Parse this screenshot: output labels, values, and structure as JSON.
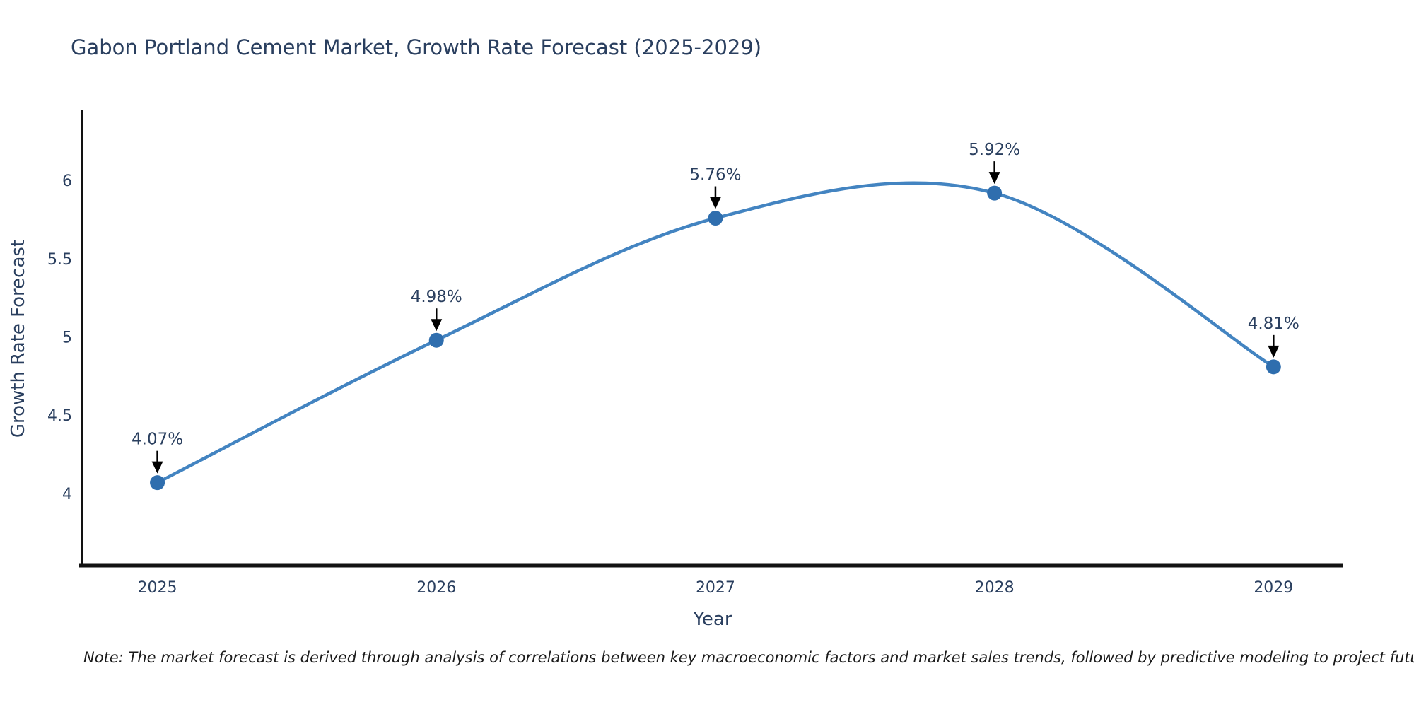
{
  "chart_data": {
    "type": "line",
    "title": "Gabon Portland Cement Market, Growth Rate Forecast (2025-2029)",
    "xlabel": "Year",
    "ylabel": "Growth Rate Forecast",
    "x": [
      2025,
      2026,
      2027,
      2028,
      2029
    ],
    "y": [
      4.07,
      4.98,
      5.76,
      5.92,
      4.81
    ],
    "series": [
      {
        "name": "Growth Rate Forecast",
        "values": [
          4.07,
          4.98,
          5.76,
          5.92,
          4.81
        ]
      }
    ],
    "point_labels": [
      "4.07%",
      "4.98%",
      "5.76%",
      "5.92%",
      "4.81%"
    ],
    "xtick_labels": [
      "2025",
      "2026",
      "2027",
      "2028",
      "2029"
    ],
    "ytick_values": [
      4,
      4.5,
      5,
      5.5,
      6
    ],
    "ytick_labels": [
      "4",
      "4.5",
      "5",
      "5.5",
      "6"
    ],
    "xlim": [
      2024.73,
      2029.25
    ],
    "ylim": [
      3.54,
      6.44
    ],
    "grid": false,
    "legend": "none",
    "line_shape": "spline",
    "colors": {
      "line": "#4384c1",
      "marker": "#2f6eae",
      "axis": "#121212",
      "text": "#2a3f5f",
      "annotation_arrow": "#000000"
    },
    "note": "Note: The market forecast is derived through analysis of correlations between key macroeconomic factors and market sales trends, followed by predictive modeling to project future sales"
  }
}
